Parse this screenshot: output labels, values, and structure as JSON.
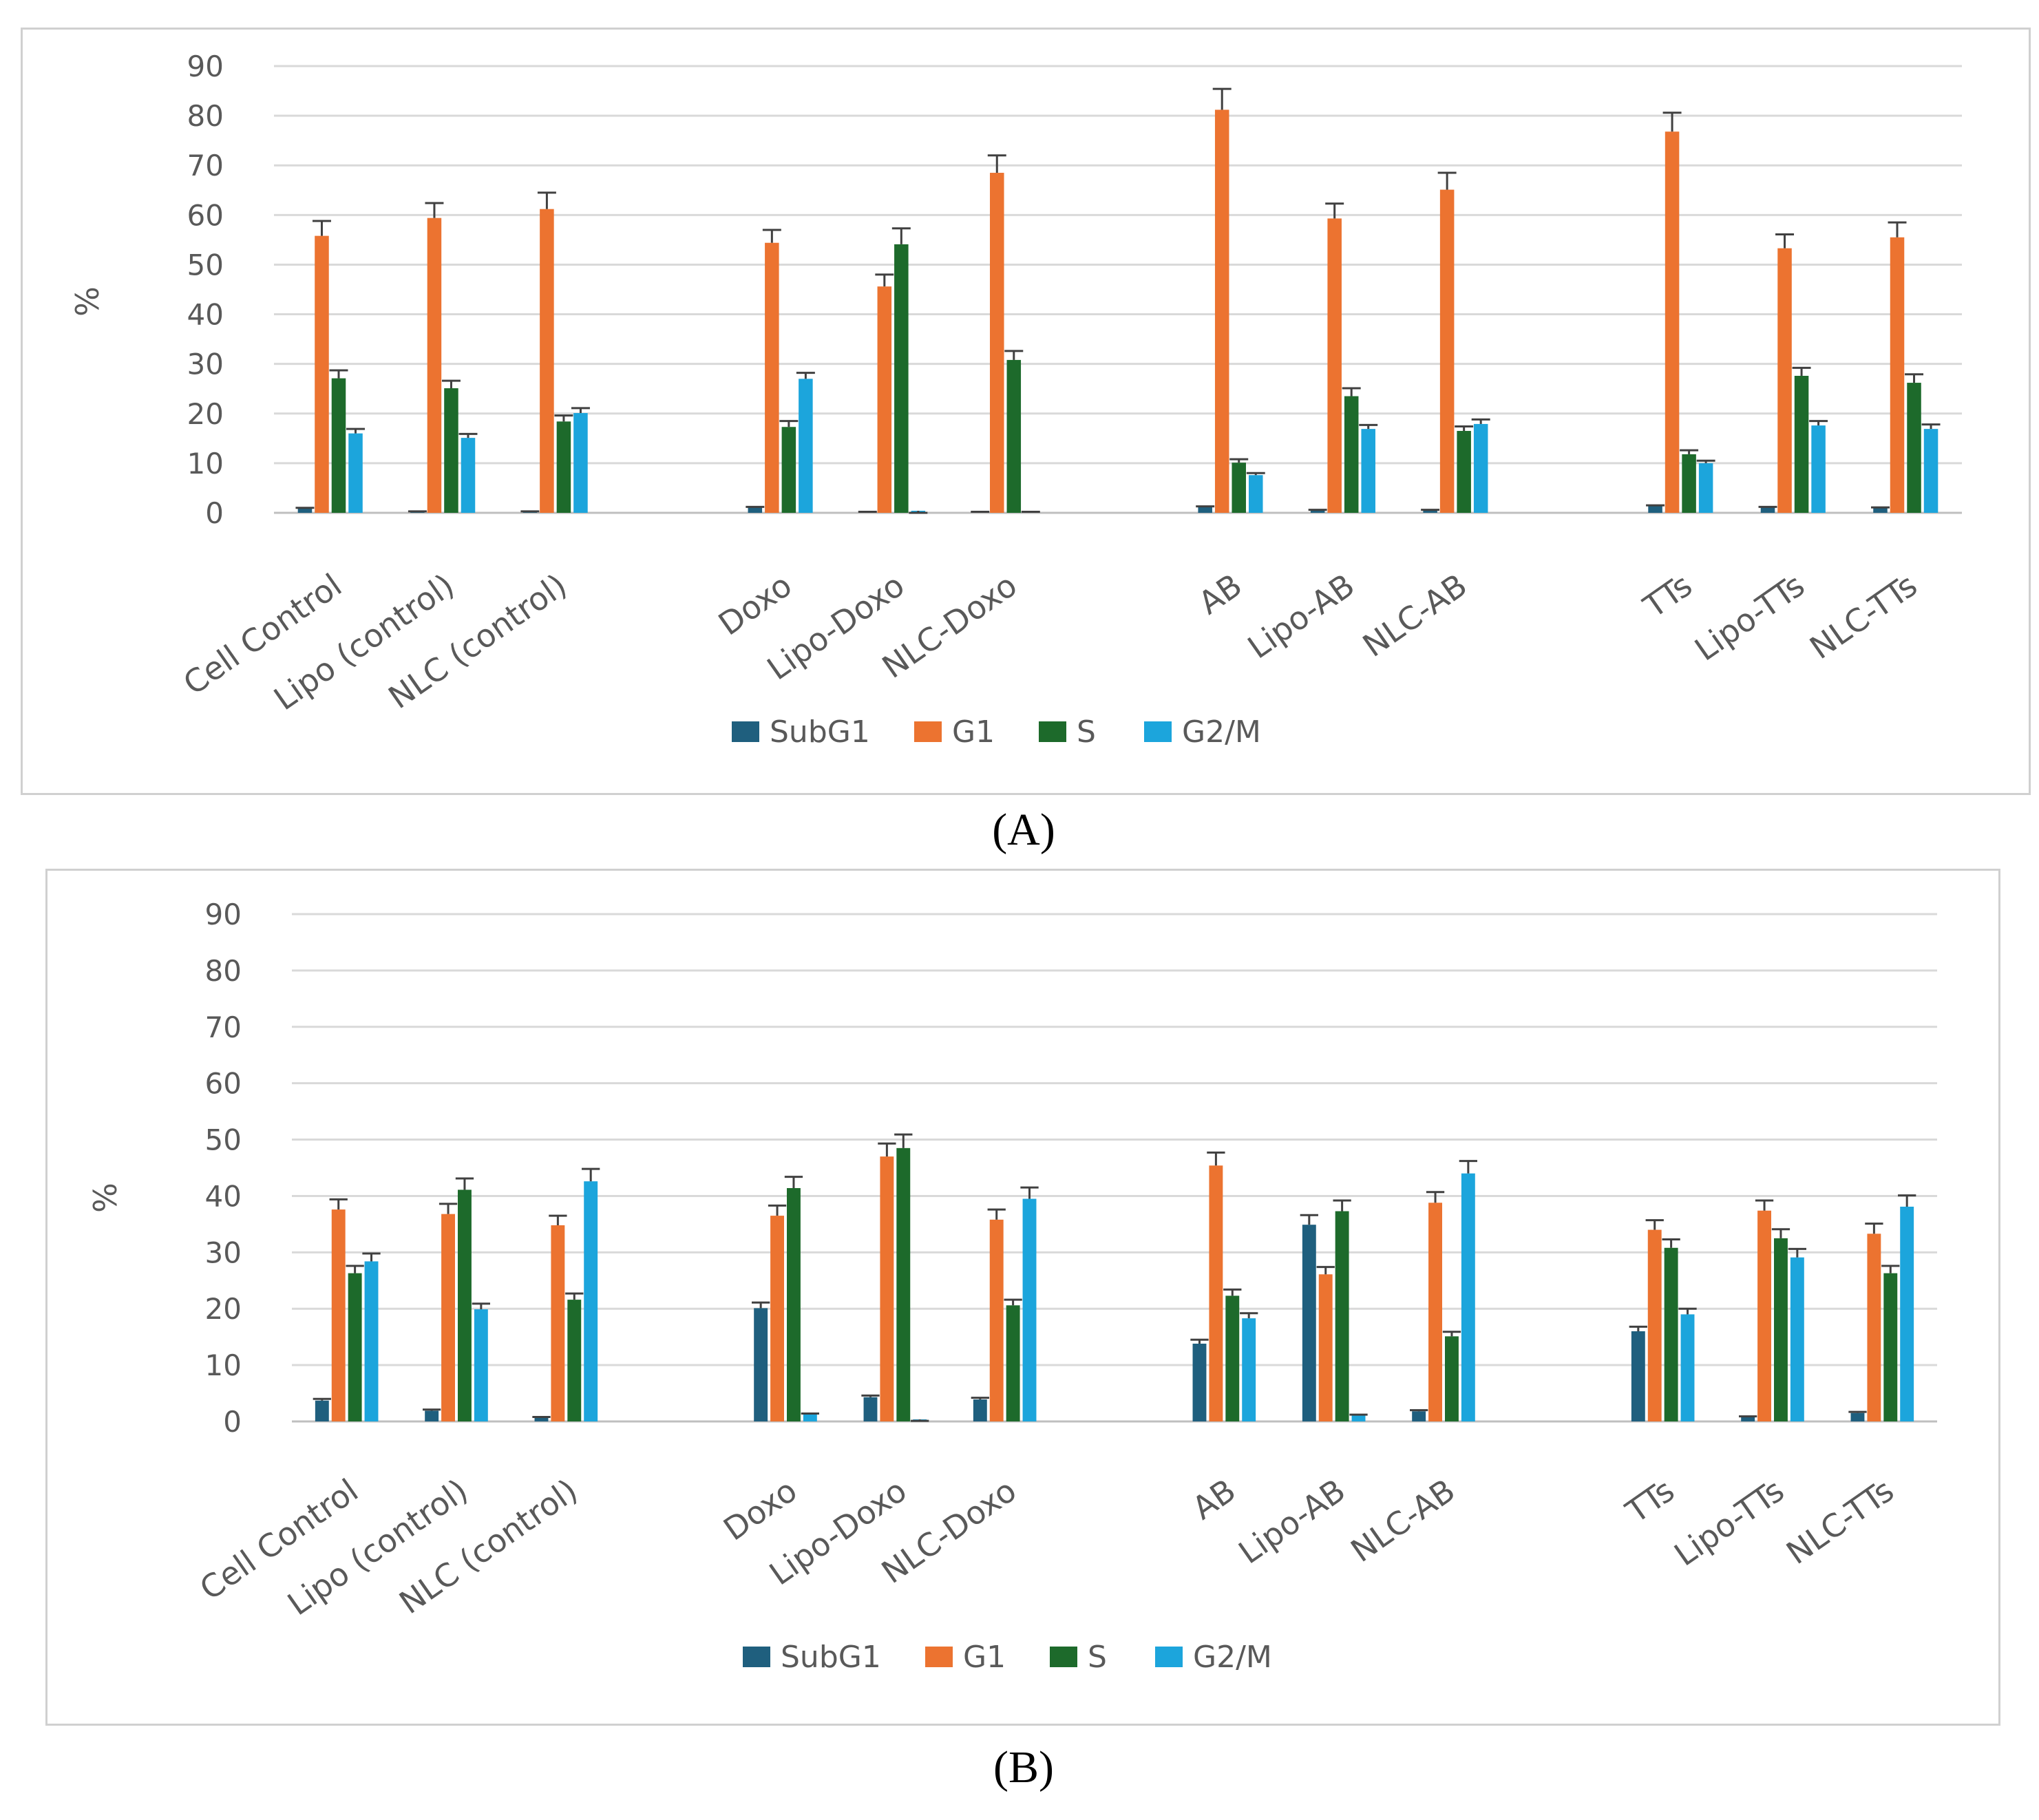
{
  "colors": {
    "SubG1": "#1f5f7e",
    "G1": "#ec7330",
    "S": "#1d6a2b",
    "G2/M": "#1ca5dc",
    "grid": "#d9d9d9",
    "errorbar": "#404040"
  },
  "panel_labels": {
    "A": "(A)",
    "B": "(B)"
  },
  "chart_data": [
    {
      "type": "bar",
      "panel": "A",
      "ylabel": "%",
      "ylim": [
        0,
        90
      ],
      "yticks": [
        0,
        10,
        20,
        30,
        40,
        50,
        60,
        70,
        80,
        90
      ],
      "legend_position": "bottom",
      "categories": [
        "Cell Control",
        "Lipo (control)",
        "NLC (control)",
        "Doxo",
        "Lipo-Doxo",
        "NLC-Doxo",
        "AB",
        "Lipo-AB",
        "NLC-AB",
        "TTs",
        "Lipo-TTs",
        "NLC-TTs"
      ],
      "series": [
        {
          "name": "SubG1",
          "values": [
            1,
            0.3,
            0.3,
            1.2,
            0.2,
            0.2,
            1.3,
            0.6,
            0.6,
            1.5,
            1.2,
            1.1
          ],
          "errors": [
            0,
            0,
            0,
            0,
            0,
            0,
            0,
            0,
            0,
            0,
            0,
            0
          ]
        },
        {
          "name": "G1",
          "values": [
            55.8,
            59.4,
            61.2,
            54.4,
            45.6,
            68.5,
            81.2,
            59.3,
            65.1,
            76.8,
            53.3,
            55.5
          ],
          "errors": [
            3,
            3,
            3.3,
            2.6,
            2.4,
            3.5,
            4.2,
            3,
            3.4,
            3.8,
            2.8,
            3
          ]
        },
        {
          "name": "S",
          "values": [
            27.1,
            25.1,
            18.4,
            17.3,
            54.1,
            30.8,
            10.1,
            23.5,
            16.5,
            11.8,
            27.6,
            26.2
          ],
          "errors": [
            1.6,
            1.5,
            1.2,
            1.2,
            3.2,
            1.8,
            0.7,
            1.6,
            0.9,
            0.8,
            1.6,
            1.7
          ]
        },
        {
          "name": "G2/M",
          "values": [
            16,
            15.1,
            20.1,
            27,
            0,
            0.2,
            7.6,
            16.9,
            17.9,
            10,
            17.6,
            16.9
          ],
          "errors": [
            0.9,
            0.8,
            1,
            1.2,
            0,
            0,
            0.4,
            0.8,
            0.9,
            0.5,
            0.9,
            0.9
          ]
        }
      ]
    },
    {
      "type": "bar",
      "panel": "B",
      "ylabel": "%",
      "ylim": [
        0,
        90
      ],
      "yticks": [
        0,
        10,
        20,
        30,
        40,
        50,
        60,
        70,
        80,
        90
      ],
      "legend_position": "bottom",
      "categories": [
        "Cell Control",
        "Lipo (control)",
        "NLC (control)",
        "Doxo",
        "Lipo-Doxo",
        "NLC-Doxo",
        "AB",
        "Lipo-AB",
        "NLC-AB",
        "TTs",
        "Lipo-TTs",
        "NLC-TTs"
      ],
      "series": [
        {
          "name": "SubG1",
          "values": [
            3.7,
            1.9,
            0.7,
            20.1,
            4.3,
            3.9,
            13.8,
            34.9,
            1.8,
            16,
            0.8,
            1.5
          ],
          "errors": [
            0.3,
            0.2,
            0.1,
            1,
            0.3,
            0.3,
            0.7,
            1.7,
            0.2,
            0.8,
            0.1,
            0.2
          ]
        },
        {
          "name": "G1",
          "values": [
            37.6,
            36.8,
            34.8,
            36.5,
            47,
            35.8,
            45.4,
            26.1,
            38.8,
            34,
            37.4,
            33.3
          ],
          "errors": [
            1.8,
            1.8,
            1.7,
            1.8,
            2.3,
            1.8,
            2.3,
            1.3,
            1.9,
            1.7,
            1.8,
            1.8
          ]
        },
        {
          "name": "S",
          "values": [
            26.3,
            41.1,
            21.6,
            41.4,
            48.5,
            20.6,
            22.3,
            37.3,
            15.1,
            30.8,
            32.5,
            26.3
          ],
          "errors": [
            1.3,
            2,
            1.1,
            2,
            2.4,
            1,
            1.1,
            1.9,
            0.8,
            1.5,
            1.6,
            1.3
          ]
        },
        {
          "name": "G2/M",
          "values": [
            28.4,
            19.9,
            42.6,
            1.4,
            0.1,
            39.5,
            18.3,
            1.2,
            44,
            19,
            29.1,
            38.1
          ],
          "errors": [
            1.4,
            1,
            2.2,
            0,
            0,
            2,
            0.9,
            0,
            2.2,
            1,
            1.5,
            2
          ]
        }
      ]
    }
  ]
}
